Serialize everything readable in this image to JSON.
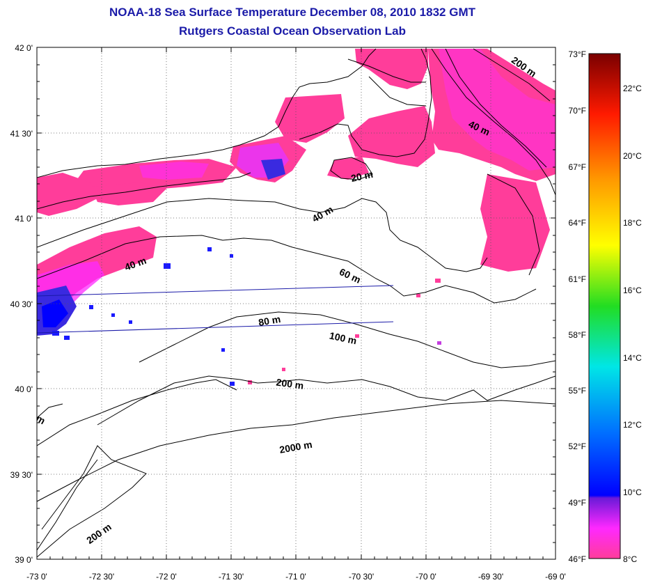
{
  "title": "NOAA-18 Sea Surface Temperature December 08, 2010 1832 GMT",
  "subtitle": "Rutgers Coastal Ocean Observation Lab",
  "map": {
    "lon_range": [
      -73.0,
      -69.0
    ],
    "lat_range": [
      39.0,
      42.0
    ],
    "lon_ticks": [
      "-73 0'",
      "-72 30'",
      "-72 0'",
      "-71 30'",
      "-71 0'",
      "-70 30'",
      "-70 0'",
      "-69 30'",
      "-69 0'"
    ],
    "lat_ticks": [
      "42 0'",
      "41 30'",
      "41 0'",
      "40 30'",
      "40 0'",
      "39 30'",
      "39 0'"
    ],
    "grid": true,
    "isobath_labels": [
      "200 m",
      "40 m",
      "20 m",
      "40 m",
      "40 m",
      "60 m",
      "80 m",
      "100 m",
      "200 m",
      "2000 m",
      "200 m",
      "m"
    ],
    "colors": {
      "sst_pink": "#ff3d9a",
      "sst_magenta": "#ff2aff",
      "sst_blue": "#1a1aff",
      "title": "#1a1aa8"
    }
  },
  "colorbar": {
    "fahrenheit_ticks": [
      "73°F",
      "70°F",
      "67°F",
      "64°F",
      "61°F",
      "58°F",
      "55°F",
      "52°F",
      "49°F",
      "46°F"
    ],
    "celsius_ticks": [
      "22°C",
      "20°C",
      "18°C",
      "16°C",
      "14°C",
      "12°C",
      "10°C",
      "8°C"
    ],
    "range_f": [
      46,
      73
    ]
  }
}
